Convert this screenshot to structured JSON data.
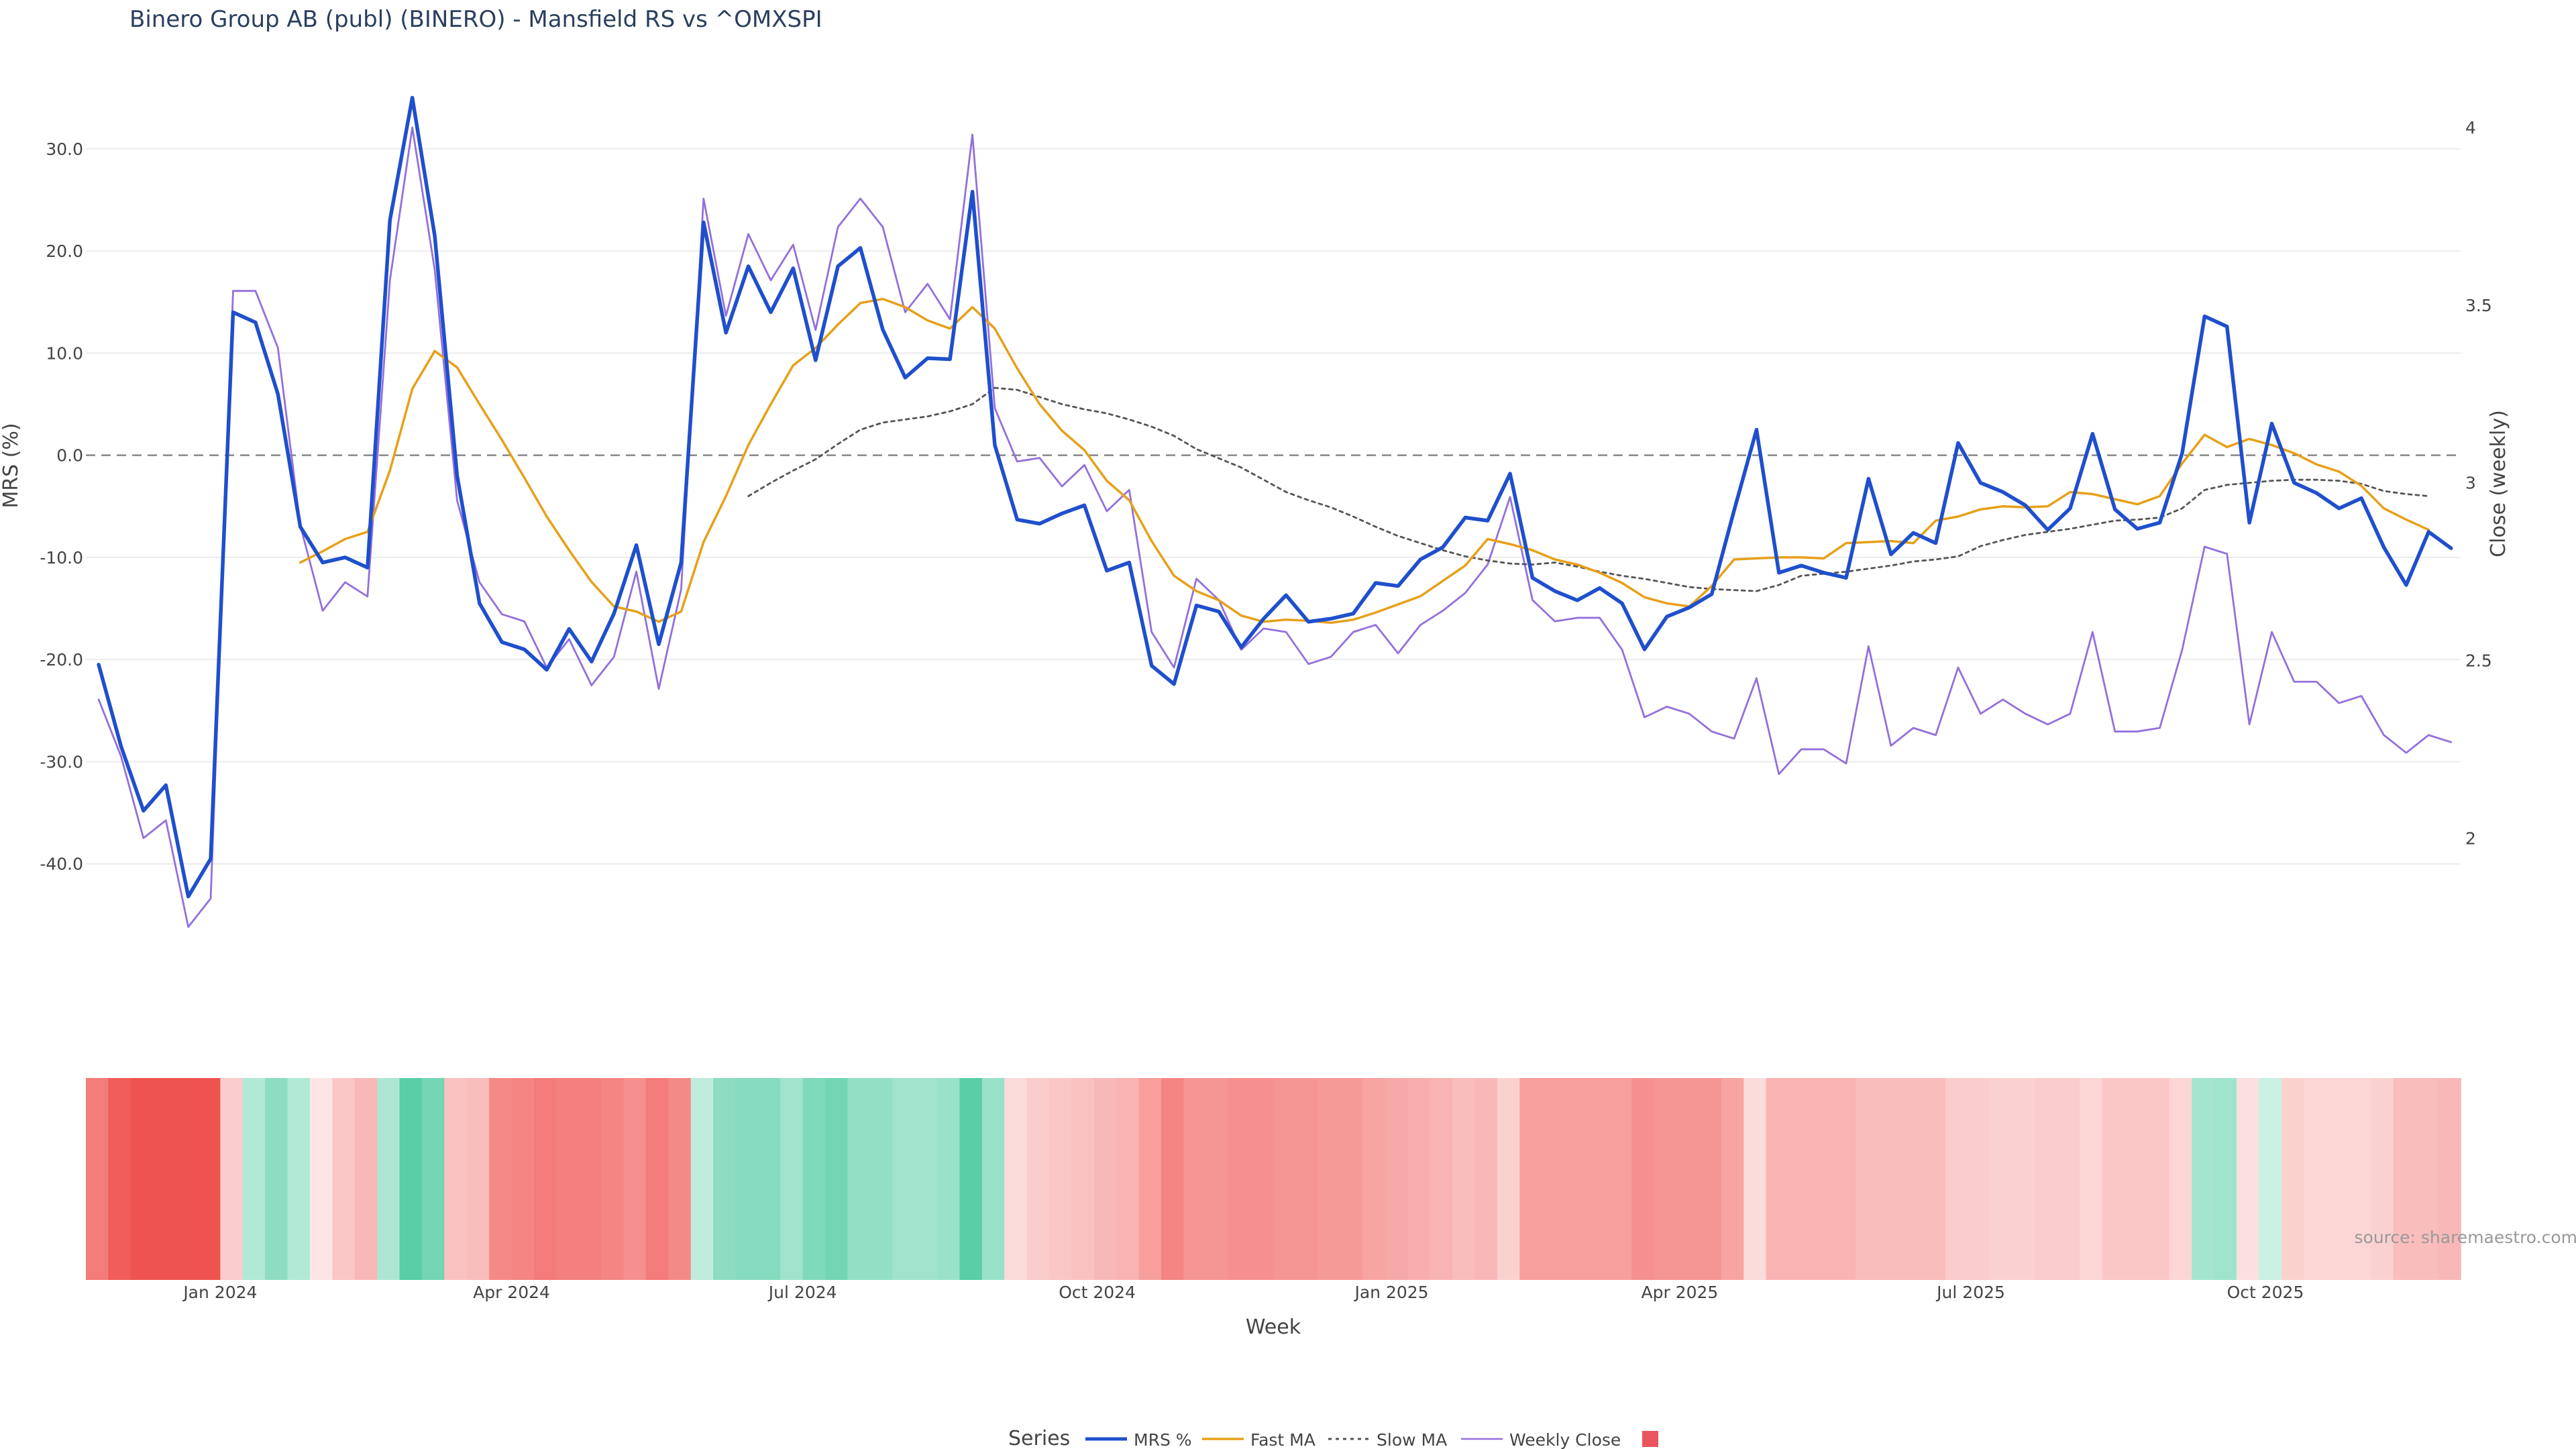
{
  "chart_data": {
    "type": "line",
    "title": "Binero Group AB (publ) (BINERO) - Mansfield RS vs ^OMXSPI",
    "xlabel": "Week",
    "ylabel": "MRS (%)",
    "y2label": "Close (weekly)",
    "source": "source: sharemaestro.com",
    "grid": true,
    "legend_title": "Series",
    "legend_position": "bottom-center",
    "xlim": [
      "2023-11-20",
      "2025-12-01"
    ],
    "ylim": [
      -50,
      38
    ],
    "y2lim": [
      1.64,
      4.17
    ],
    "y_ticks": [
      30.0,
      20.0,
      10.0,
      0.0,
      -10.0,
      -20.0,
      -30.0,
      -40.0
    ],
    "y2_ticks": [
      4,
      3.5,
      3,
      2.5,
      2
    ],
    "x_ticks": [
      {
        "date": "2024-01-01",
        "label": "Jan 2024"
      },
      {
        "date": "2024-04-01",
        "label": "Apr 2024"
      },
      {
        "date": "2024-07-01",
        "label": "Jul 2024"
      },
      {
        "date": "2024-10-01",
        "label": "Oct 2024"
      },
      {
        "date": "2025-01-01",
        "label": "Jan 2025"
      },
      {
        "date": "2025-04-01",
        "label": "Apr 2025"
      },
      {
        "date": "2025-07-01",
        "label": "Jul 2025"
      },
      {
        "date": "2025-10-01",
        "label": "Oct 2025"
      }
    ],
    "zero_line": 0,
    "start_date": "2023-11-24",
    "week_days": 7,
    "colors": {
      "mrs": "#1f4fcc",
      "fast": "#e6a019",
      "slow": "#555555",
      "close": "#9370db",
      "positive": "#26bf8c",
      "negative": "#ef5350",
      "zero": "#888888",
      "grid": "#ebebeb"
    },
    "series": [
      {
        "name": "MRS %",
        "style": "solid-thick",
        "axis": "left",
        "values": [
          -20.5,
          -28.5,
          -34.8,
          -32.3,
          -43.2,
          -39.5,
          14,
          13,
          6,
          -7,
          -10.5,
          -10,
          -11,
          23,
          35,
          21.5,
          -2,
          -14.5,
          -18.3,
          -19,
          -21,
          -17,
          -20.2,
          -15.5,
          -8.8,
          -18.5,
          -10.5,
          22.8,
          12,
          18.5,
          14,
          18.3,
          9.3,
          18.5,
          20.3,
          12.3,
          7.6,
          9.5,
          9.4,
          25.8,
          1,
          -6.3,
          -6.7,
          -5.7,
          -4.9,
          -11.3,
          -10.5,
          -20.6,
          -22.4,
          -14.7,
          -15.3,
          -18.8,
          -16,
          -13.7,
          -16.3,
          -16,
          -15.5,
          -12.5,
          -12.8,
          -10.2,
          -9,
          -6.1,
          -6.4,
          -1.8,
          -12,
          -13.3,
          -14.2,
          -13,
          -14.5,
          -19,
          -15.8,
          -14.9,
          -13.6,
          -5.4,
          2.5,
          -11.5,
          -10.8,
          -11.5,
          -12,
          -2.3,
          -9.7,
          -7.6,
          -8.6,
          1.2,
          -2.7,
          -3.6,
          -4.9,
          -7.3,
          -5.2,
          2.1,
          -5.3,
          -7.2,
          -6.6,
          0.2,
          13.6,
          12.6,
          -6.6,
          3.1,
          -2.7,
          -3.7,
          -5.2,
          -4.2,
          -9,
          -12.7,
          -7.5,
          -9.1
        ]
      },
      {
        "name": "Fast MA",
        "style": "solid",
        "axis": "left",
        "start_index": 9,
        "values": [
          -10.5,
          -9.4,
          -8.2,
          -7.5,
          -1.5,
          6.5,
          10.2,
          8.6,
          5,
          1.5,
          -2.2,
          -6,
          -9.3,
          -12.4,
          -14.8,
          -15.3,
          -16.3,
          -15.3,
          -8.5,
          -4,
          1,
          5,
          8.8,
          10.5,
          12.8,
          14.9,
          15.3,
          14.5,
          13.2,
          12.4,
          14.5,
          12.4,
          8.5,
          5,
          2.4,
          0.5,
          -2.5,
          -4.4,
          -8.4,
          -11.8,
          -13.3,
          -14.2,
          -15.7,
          -16.3,
          -16.1,
          -16.2,
          -16.4,
          -16.1,
          -15.4,
          -14.6,
          -13.8,
          -12.3,
          -10.8,
          -8.2,
          -8.7,
          -9.3,
          -10.2,
          -10.7,
          -11.5,
          -12.5,
          -13.9,
          -14.5,
          -14.8,
          -12.8,
          -10.2,
          -10.1,
          -10,
          -10,
          -10.1,
          -8.6,
          -8.5,
          -8.4,
          -8.6,
          -6.4,
          -6,
          -5.3,
          -5,
          -5.1,
          -5,
          -3.6,
          -3.8,
          -4.3,
          -4.8,
          -4,
          -0.8,
          2,
          0.8,
          1.6,
          1,
          0.2,
          -0.9,
          -1.6,
          -3,
          -5.2,
          -6.3,
          -7.3
        ]
      },
      {
        "name": "Slow MA",
        "style": "dotted",
        "axis": "left",
        "start_index": 29,
        "values": [
          -4,
          -2.7,
          -1.5,
          -0.4,
          1.1,
          2.5,
          3.2,
          3.5,
          3.8,
          4.3,
          5,
          6.6,
          6.4,
          5.7,
          5,
          4.5,
          4.1,
          3.5,
          2.8,
          1.9,
          0.6,
          -0.3,
          -1.2,
          -2.4,
          -3.6,
          -4.4,
          -5.1,
          -6,
          -7,
          -7.9,
          -8.6,
          -9.3,
          -9.9,
          -10.3,
          -10.6,
          -10.7,
          -10.5,
          -10.9,
          -11.4,
          -11.8,
          -12.1,
          -12.5,
          -12.9,
          -13.1,
          -13.2,
          -13.3,
          -12.7,
          -11.8,
          -11.6,
          -11.4,
          -11.1,
          -10.8,
          -10.4,
          -10.2,
          -9.9,
          -8.9,
          -8.3,
          -7.8,
          -7.5,
          -7.2,
          -6.8,
          -6.4,
          -6.3,
          -6.1,
          -5.2,
          -3.4,
          -2.9,
          -2.7,
          -2.5,
          -2.4,
          -2.4,
          -2.5,
          -2.8,
          -3.5,
          -3.8,
          -4
        ]
      },
      {
        "name": "Weekly Close",
        "style": "solid-thin",
        "axis": "right",
        "values": [
          2.39,
          2.23,
          2.0,
          2.05,
          1.75,
          1.83,
          3.54,
          3.54,
          3.38,
          2.88,
          2.64,
          2.72,
          2.68,
          3.57,
          4.0,
          3.6,
          2.95,
          2.72,
          2.63,
          2.61,
          2.48,
          2.56,
          2.43,
          2.51,
          2.75,
          2.42,
          2.7,
          3.8,
          3.47,
          3.7,
          3.57,
          3.67,
          3.43,
          3.72,
          3.8,
          3.72,
          3.48,
          3.56,
          3.46,
          3.98,
          3.21,
          3.06,
          3.07,
          2.99,
          3.05,
          2.92,
          2.98,
          2.58,
          2.48,
          2.73,
          2.67,
          2.53,
          2.59,
          2.58,
          2.49,
          2.51,
          2.58,
          2.6,
          2.52,
          2.6,
          2.64,
          2.69,
          2.77,
          2.96,
          2.67,
          2.61,
          2.62,
          2.62,
          2.53,
          2.34,
          2.37,
          2.35,
          2.3,
          2.28,
          2.45,
          2.18,
          2.25,
          2.25,
          2.21,
          2.54,
          2.26,
          2.31,
          2.29,
          2.48,
          2.35,
          2.39,
          2.35,
          2.32,
          2.35,
          2.58,
          2.3,
          2.3,
          2.31,
          2.53,
          2.82,
          2.8,
          2.32,
          2.58,
          2.44,
          2.44,
          2.38,
          2.4,
          2.29,
          2.24,
          2.29,
          2.27
        ]
      }
    ],
    "heatmap_strip_mrs": [
      -22,
      -28,
      -34,
      -33,
      -40,
      -38,
      -6,
      8,
      14,
      8,
      -1,
      -7,
      -10,
      9,
      22,
      18,
      -8,
      -9,
      -19,
      -20,
      -22,
      -21,
      -21,
      -20,
      -18,
      -22,
      -19,
      6,
      14,
      15,
      15,
      11,
      16,
      18,
      13,
      13,
      11,
      11,
      12,
      22,
      12,
      -3,
      -6,
      -7,
      -8,
      -10,
      -11,
      -15,
      -20,
      -17,
      -17,
      -18,
      -18,
      -17,
      -17,
      -16,
      -16,
      -14,
      -13,
      -12,
      -11,
      -9,
      -10,
      -5,
      -15,
      -15,
      -15,
      -15,
      -15,
      -18,
      -17,
      -17,
      -17,
      -14,
      -3,
      -11,
      -11,
      -11,
      -11,
      -9,
      -9,
      -9,
      -9,
      -6,
      -6,
      -5,
      -5,
      -6,
      -6,
      -4,
      -7,
      -7,
      -7,
      -4,
      10,
      11,
      -2,
      4,
      -5,
      -4,
      -4,
      -4,
      -5,
      -9,
      -9,
      -10
    ]
  }
}
